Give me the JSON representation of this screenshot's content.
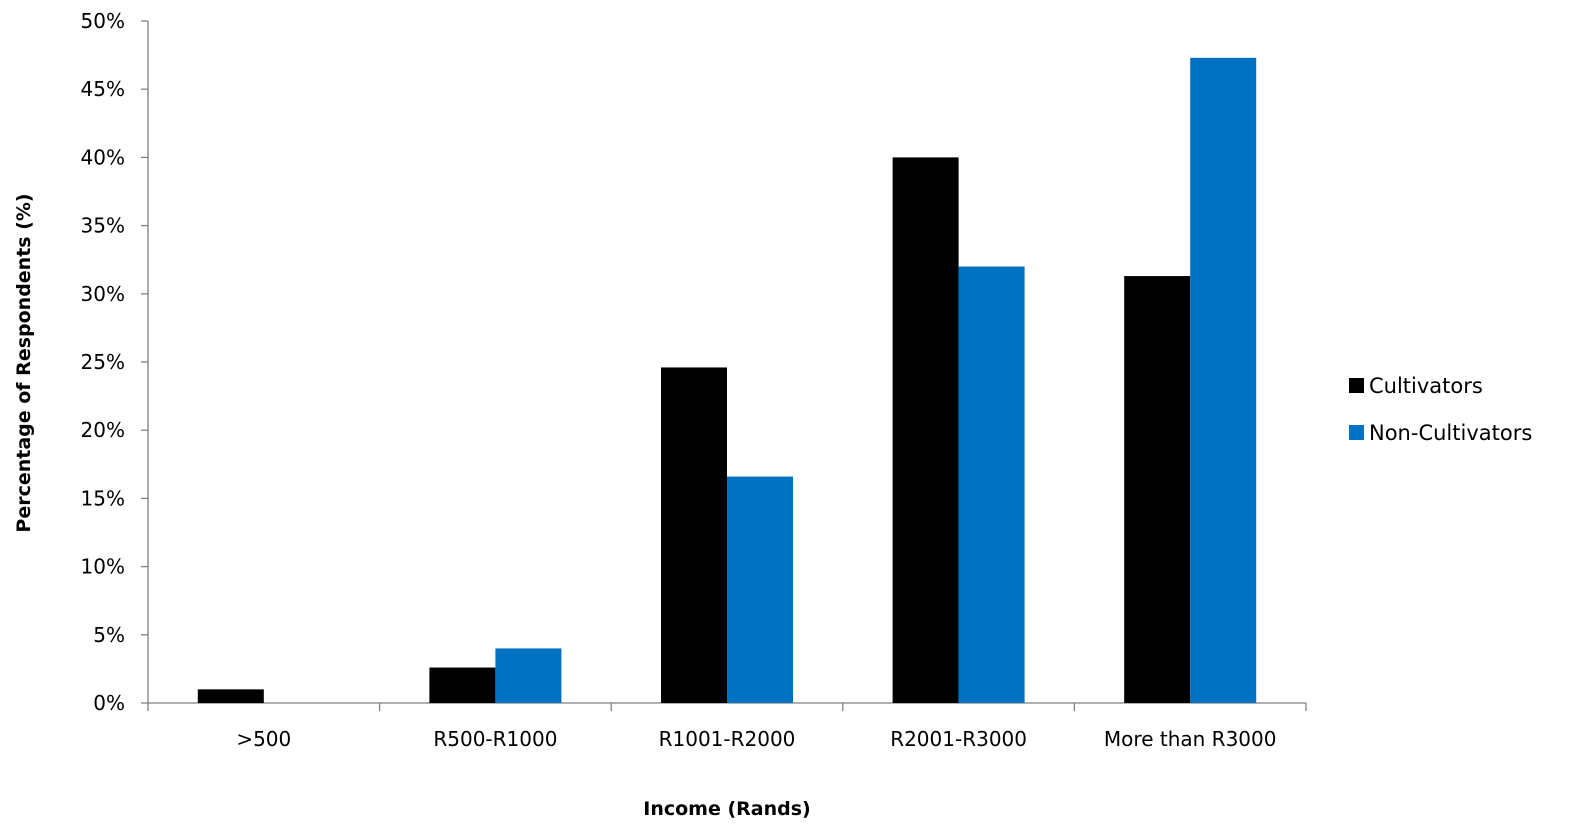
{
  "chart_data": {
    "type": "bar",
    "title": "",
    "xlabel": "Income (Rands)",
    "ylabel": "Percentage of Respondents (%)",
    "categories": [
      ">500",
      "R500-R1000",
      "R1001-R2000",
      "R2001-R3000",
      "More than R3000"
    ],
    "series": [
      {
        "name": "Cultivators",
        "color": "#000000",
        "values": [
          1.0,
          2.6,
          24.6,
          40.0,
          31.3
        ]
      },
      {
        "name": "Non-Cultivators",
        "color": "#0070C0",
        "values": [
          0.0,
          4.0,
          16.6,
          32.0,
          47.3
        ]
      }
    ],
    "ylim": [
      0,
      50
    ],
    "ytick_step": 5,
    "ytick_suffix": "%",
    "grid": false,
    "legend_position": "right"
  }
}
